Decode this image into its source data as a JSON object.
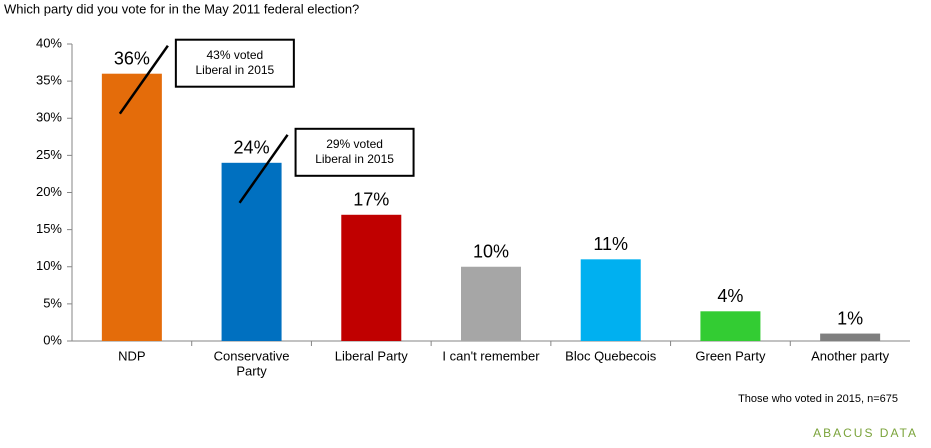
{
  "chart_data": {
    "type": "bar",
    "title": "Which party did you vote for in the May 2011 federal election?",
    "categories": [
      [
        "NDP"
      ],
      [
        "Conservative",
        "Party"
      ],
      [
        "Liberal Party"
      ],
      [
        "I can't remember"
      ],
      [
        "Bloc Quebecois"
      ],
      [
        "Green Party"
      ],
      [
        "Another party"
      ]
    ],
    "values": [
      36,
      24,
      17,
      10,
      11,
      4,
      1
    ],
    "value_labels": [
      "36%",
      "24%",
      "17%",
      "10%",
      "11%",
      "4%",
      "1%"
    ],
    "colors": [
      "#e46c0a",
      "#0070c0",
      "#c00000",
      "#a6a6a6",
      "#00b0f0",
      "#33cc33",
      "#7f7f7f"
    ],
    "ylim": [
      0,
      40
    ],
    "yticks": [
      {
        "value": 0,
        "label": "0%"
      },
      {
        "value": 5,
        "label": "5%"
      },
      {
        "value": 10,
        "label": "10%"
      },
      {
        "value": 15,
        "label": "15%"
      },
      {
        "value": 20,
        "label": "20%"
      },
      {
        "value": 25,
        "label": "25%"
      },
      {
        "value": 30,
        "label": "30%"
      },
      {
        "value": 35,
        "label": "35%"
      },
      {
        "value": 40,
        "label": "40%"
      }
    ],
    "grid": false,
    "annotations": [
      {
        "category": 0,
        "lines": [
          "43% voted",
          "Liberal in 2015"
        ]
      },
      {
        "category": 1,
        "lines": [
          "29% voted",
          "Liberal in 2015"
        ]
      }
    ],
    "note": "Those who voted in 2015, n=675",
    "logo": "ABACUS DATA"
  }
}
